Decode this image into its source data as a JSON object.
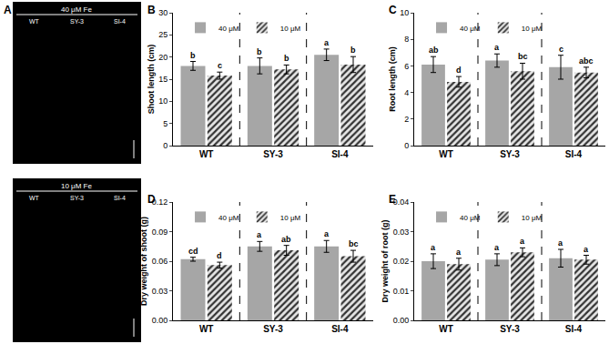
{
  "panel_a": {
    "label": "A",
    "boxes": [
      {
        "title": "40 μM Fe",
        "labels": [
          "WT",
          "SY-3",
          "SI-4"
        ]
      },
      {
        "title": "10 μM Fe",
        "labels": [
          "WT",
          "SY-3",
          "SI-4"
        ]
      }
    ]
  },
  "chart_data": [
    {
      "type": "bar",
      "panel": "B",
      "y_label": "Shoot length (cm)",
      "categories": [
        "WT",
        "SY-3",
        "SI-4"
      ],
      "ylim": [
        0,
        30
      ],
      "yticks": [
        0,
        5,
        10,
        15,
        20,
        25,
        30
      ],
      "legend": "top left",
      "series": [
        {
          "name": "40 μM",
          "color": "#a6a6a6",
          "marker": "solid",
          "values": [
            18,
            18,
            20.5
          ],
          "errors": [
            1,
            1.8,
            1.3
          ],
          "letters": [
            "b",
            "b",
            "a"
          ]
        },
        {
          "name": "10 μM",
          "color": "#333333",
          "marker": "hatched",
          "values": [
            15.8,
            17.2,
            18.3
          ],
          "errors": [
            0.8,
            1,
            1.8
          ],
          "letters": [
            "c",
            "b",
            "b"
          ]
        }
      ]
    },
    {
      "type": "bar",
      "panel": "C",
      "y_label": "Root length (cm)",
      "categories": [
        "WT",
        "SY-3",
        "SI-4"
      ],
      "ylim": [
        0,
        10
      ],
      "yticks": [
        0,
        2,
        4,
        6,
        8,
        10
      ],
      "legend": "top left",
      "series": [
        {
          "name": "40 μM",
          "color": "#a6a6a6",
          "marker": "solid",
          "values": [
            6.1,
            6.4,
            5.9
          ],
          "errors": [
            0.6,
            0.5,
            0.9
          ],
          "letters": [
            "ab",
            "a",
            "c"
          ]
        },
        {
          "name": "10 μM",
          "color": "#333333",
          "marker": "hatched",
          "values": [
            4.8,
            5.6,
            5.5
          ],
          "errors": [
            0.4,
            0.6,
            0.4
          ],
          "letters": [
            "d",
            "bc",
            "abc"
          ]
        }
      ]
    },
    {
      "type": "bar",
      "panel": "D",
      "y_label": "Dry weight of shoot (g)",
      "categories": [
        "WT",
        "SY-3",
        "SI-4"
      ],
      "ylim": [
        0,
        0.12
      ],
      "yticks": [
        {
          "value": 0,
          "label": "0.00"
        },
        0.03,
        0.06,
        0.09,
        0.12
      ],
      "legend": "top left",
      "series": [
        {
          "name": "40 μM",
          "color": "#a6a6a6",
          "marker": "solid",
          "values": [
            0.062,
            0.075,
            0.075
          ],
          "errors": [
            0.002,
            0.005,
            0.006
          ],
          "letters": [
            "cd",
            "a",
            "a"
          ]
        },
        {
          "name": "10 μM",
          "color": "#333333",
          "marker": "hatched",
          "values": [
            0.056,
            0.071,
            0.065
          ],
          "errors": [
            0.003,
            0.005,
            0.006
          ],
          "letters": [
            "d",
            "ab",
            "bc"
          ]
        }
      ]
    },
    {
      "type": "bar",
      "panel": "E",
      "y_label": "Dry weight of root (g)",
      "categories": [
        "WT",
        "SY-3",
        "SI-4"
      ],
      "ylim": [
        0,
        0.04
      ],
      "yticks": [
        {
          "value": 0,
          "label": "0.00"
        },
        0.01,
        0.02,
        0.03,
        0.04
      ],
      "legend": "top left",
      "series": [
        {
          "name": "40 μM",
          "color": "#a6a6a6",
          "marker": "solid",
          "values": [
            0.02,
            0.0205,
            0.021
          ],
          "errors": [
            0.0025,
            0.002,
            0.003
          ],
          "letters": [
            "a",
            "a",
            "a"
          ]
        },
        {
          "name": "10 μM",
          "color": "#333333",
          "marker": "hatched",
          "values": [
            0.019,
            0.023,
            0.0205
          ],
          "errors": [
            0.002,
            0.0015,
            0.0015
          ],
          "letters": [
            "a",
            "a",
            "a"
          ]
        }
      ]
    }
  ]
}
